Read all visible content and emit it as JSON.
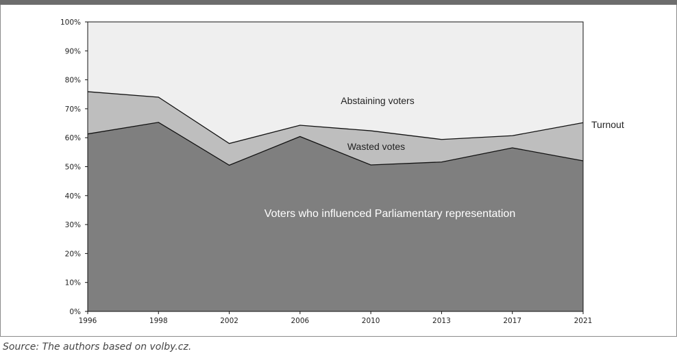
{
  "source_note": "Source: The authors based on volby.cz.",
  "colors": {
    "abstaining": "#efefef",
    "wasted": "#bebebe",
    "influenced": "#7f7f7f",
    "header_band": "#6d6d6d"
  },
  "chart_data": {
    "type": "area",
    "categories": [
      "1996",
      "1998",
      "2002",
      "2006",
      "2010",
      "2013",
      "2017",
      "2021"
    ],
    "ylim": [
      0,
      100
    ],
    "yticks": [
      0,
      10,
      20,
      30,
      40,
      50,
      60,
      70,
      80,
      90,
      100
    ],
    "ytick_labels": [
      "0%",
      "10%",
      "20%",
      "30%",
      "40%",
      "50%",
      "60%",
      "70%",
      "80%",
      "90%",
      "100%"
    ],
    "series": [
      {
        "values": [
          61.3,
          65.3,
          50.5,
          60.4,
          50.6,
          51.6,
          56.5,
          52.0
        ]
      },
      {
        "values": [
          14.6,
          8.7,
          7.5,
          3.9,
          11.8,
          7.8,
          4.2,
          13.2
        ]
      },
      {
        "values": [
          24.1,
          26.0,
          42.0,
          35.7,
          37.6,
          40.6,
          39.3,
          34.8
        ]
      }
    ],
    "turnout": [
      75.9,
      74.0,
      58.0,
      64.3,
      62.4,
      59.4,
      60.7,
      65.2
    ],
    "annotations": {
      "abstaining": "Abstaining voters",
      "wasted": "Wasted votes",
      "influenced": "Voters who influenced Parliamentary representation",
      "turnout": "Turnout"
    },
    "grid": false
  }
}
